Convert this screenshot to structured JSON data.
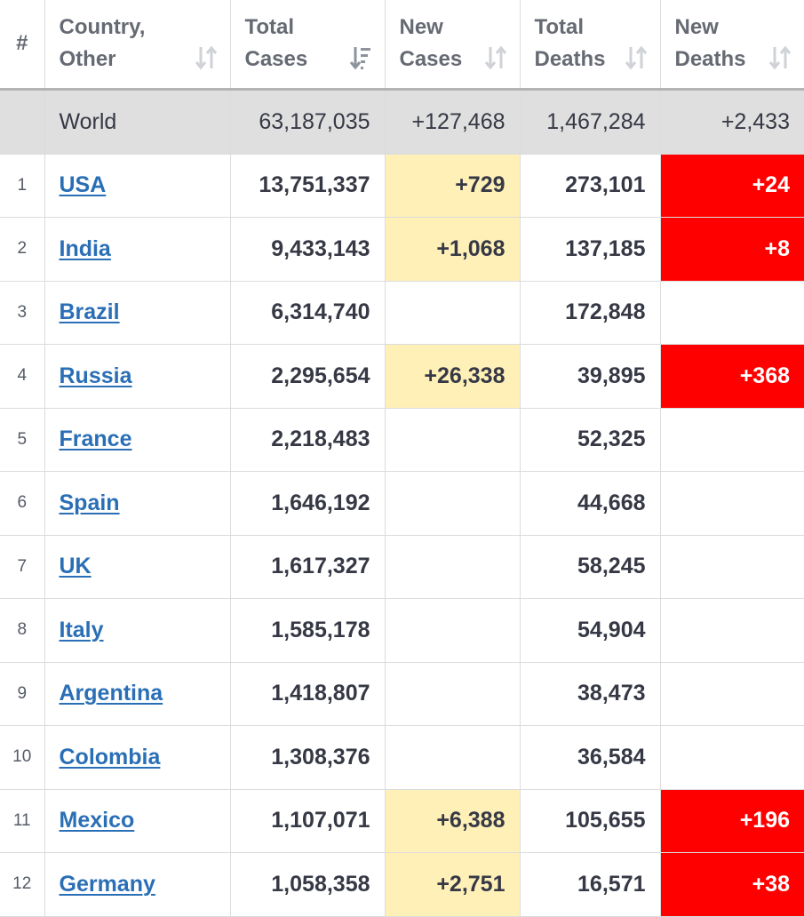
{
  "headers": {
    "rank": "#",
    "country_line1": "Country,",
    "country_line2": "Other",
    "total_cases_line1": "Total",
    "total_cases_line2": "Cases",
    "new_cases_line1": "New",
    "new_cases_line2": "Cases",
    "total_deaths_line1": "Total",
    "total_deaths_line2": "Deaths",
    "new_deaths_line1": "New",
    "new_deaths_line2": "Deaths"
  },
  "colors": {
    "link": "#2a6fb6",
    "new_cases_highlight": "#fff0b8",
    "new_deaths_highlight": "#ff0000",
    "world_row_bg": "#dfdfdf"
  },
  "world": {
    "country": "World",
    "total_cases": "63,187,035",
    "new_cases": "+127,468",
    "total_deaths": "1,467,284",
    "new_deaths": "+2,433"
  },
  "rows": [
    {
      "rank": "1",
      "country": "USA",
      "total_cases": "13,751,337",
      "new_cases": "+729",
      "total_deaths": "273,101",
      "new_deaths": "+24"
    },
    {
      "rank": "2",
      "country": "India",
      "total_cases": "9,433,143",
      "new_cases": "+1,068",
      "total_deaths": "137,185",
      "new_deaths": "+8"
    },
    {
      "rank": "3",
      "country": "Brazil",
      "total_cases": "6,314,740",
      "new_cases": "",
      "total_deaths": "172,848",
      "new_deaths": ""
    },
    {
      "rank": "4",
      "country": "Russia",
      "total_cases": "2,295,654",
      "new_cases": "+26,338",
      "total_deaths": "39,895",
      "new_deaths": "+368"
    },
    {
      "rank": "5",
      "country": "France",
      "total_cases": "2,218,483",
      "new_cases": "",
      "total_deaths": "52,325",
      "new_deaths": ""
    },
    {
      "rank": "6",
      "country": "Spain",
      "total_cases": "1,646,192",
      "new_cases": "",
      "total_deaths": "44,668",
      "new_deaths": ""
    },
    {
      "rank": "7",
      "country": "UK",
      "total_cases": "1,617,327",
      "new_cases": "",
      "total_deaths": "58,245",
      "new_deaths": ""
    },
    {
      "rank": "8",
      "country": "Italy",
      "total_cases": "1,585,178",
      "new_cases": "",
      "total_deaths": "54,904",
      "new_deaths": ""
    },
    {
      "rank": "9",
      "country": "Argentina",
      "total_cases": "1,418,807",
      "new_cases": "",
      "total_deaths": "38,473",
      "new_deaths": ""
    },
    {
      "rank": "10",
      "country": "Colombia",
      "total_cases": "1,308,376",
      "new_cases": "",
      "total_deaths": "36,584",
      "new_deaths": ""
    },
    {
      "rank": "11",
      "country": "Mexico",
      "total_cases": "1,107,071",
      "new_cases": "+6,388",
      "total_deaths": "105,655",
      "new_deaths": "+196"
    },
    {
      "rank": "12",
      "country": "Germany",
      "total_cases": "1,058,358",
      "new_cases": "+2,751",
      "total_deaths": "16,571",
      "new_deaths": "+38"
    }
  ]
}
